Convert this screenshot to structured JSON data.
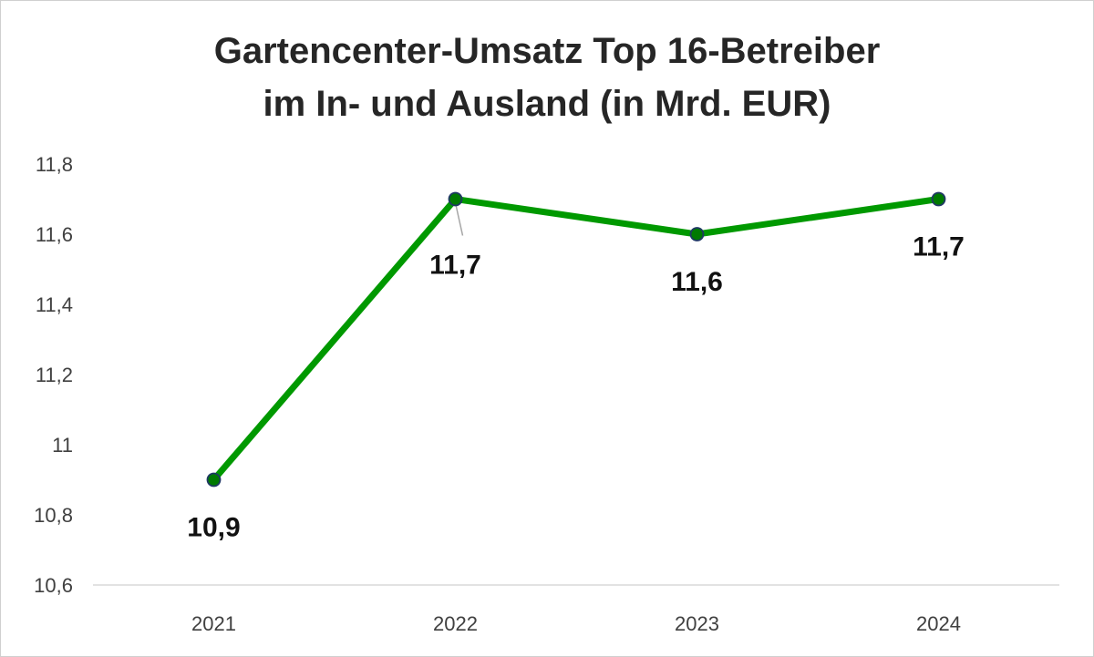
{
  "chart_data": {
    "type": "line",
    "title_line1": "Gartencenter-Umsatz Top 16-Betreiber",
    "title_line2": "im In- und Ausland (in Mrd. EUR)",
    "categories": [
      "2021",
      "2022",
      "2023",
      "2024"
    ],
    "series": [
      {
        "values": [
          10.9,
          11.7,
          11.6,
          11.7
        ]
      }
    ],
    "data_labels": [
      "10,9",
      "11,7",
      "11,6",
      "11,7"
    ],
    "ylim": [
      10.6,
      11.8
    ],
    "y_ticks": [
      10.6,
      10.8,
      11.0,
      11.2,
      11.4,
      11.6,
      11.8
    ],
    "y_tick_labels": [
      "10,6",
      "10,8",
      "11",
      "11,2",
      "11,4",
      "11,6",
      "11,8"
    ],
    "grid": false,
    "line_color": "#009900",
    "marker_fill": "#007a00",
    "marker_stroke": "#1f3864"
  }
}
